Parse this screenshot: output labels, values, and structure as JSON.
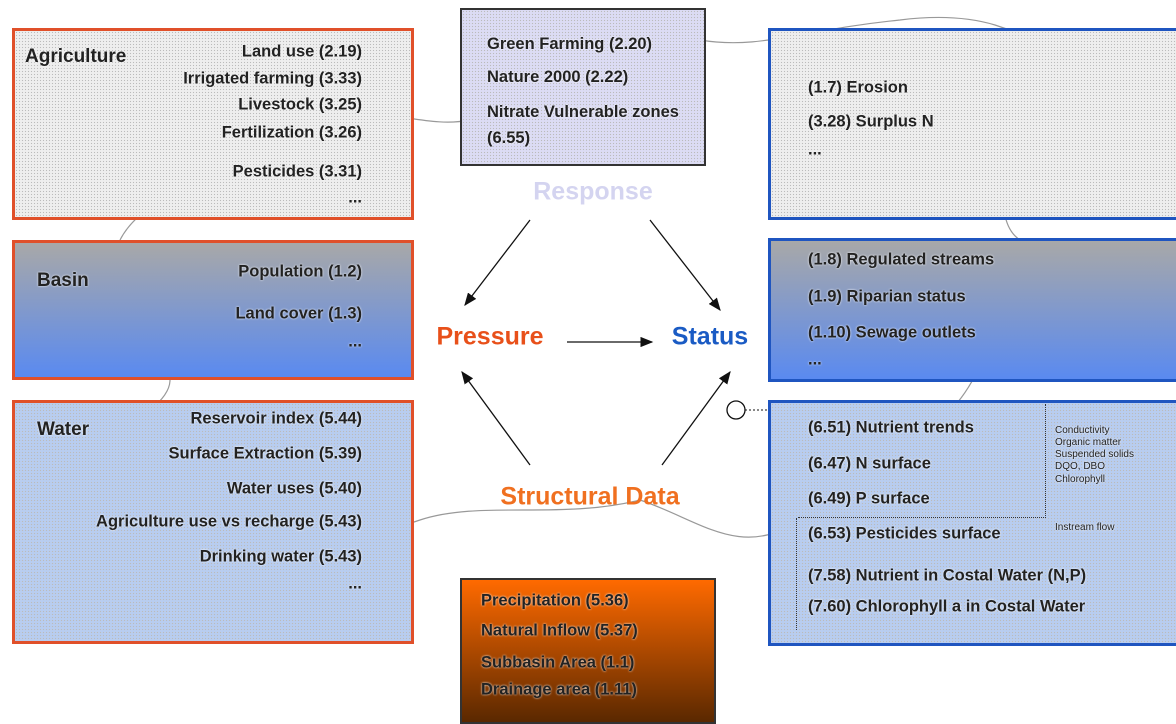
{
  "center": {
    "response": "Response",
    "pressure": "Pressure",
    "status": "Status",
    "structural": "Structural Data"
  },
  "boxes": [
    {
      "title": "Agriculture",
      "items": [
        "Land use (2.19)",
        "Irrigated farming (3.33)",
        "Livestock  (3.25)",
        "Fertilization (3.26)",
        "Pesticides (3.31)",
        "..."
      ]
    },
    {
      "items": [
        "Green Farming (2.20)",
        "Nature 2000 (2.22)",
        "Nitrate Vulnerable zones (6.55)"
      ]
    },
    {
      "items": [
        "(1.7) Erosion",
        "(3.28) Surplus N",
        "..."
      ]
    },
    {
      "title": "Basin",
      "items": [
        "Population (1.2)",
        "Land cover  (1.3)",
        "..."
      ]
    },
    {
      "items": [
        "(1.8) Regulated streams",
        "(1.9) Riparian status",
        "(1.10) Sewage outlets",
        "..."
      ]
    },
    {
      "title": "Water",
      "items": [
        "Reservoir index (5.44)",
        "Surface Extraction (5.39)",
        "Water uses (5.40)",
        "Agriculture use vs recharge (5.43)",
        "Drinking water (5.43)",
        "..."
      ]
    },
    {
      "items": [
        "(6.51) Nutrient trends",
        "(6.47) N surface",
        "(6.49) P surface",
        "(6.53) Pesticides surface",
        "(7.58) Nutrient in Costal Water (N,P)",
        "(7.60) Chlorophyll a  in Costal Water"
      ],
      "notes": [
        "Conductivity",
        "Organic matter",
        "Suspended solids",
        "DQO, DBO",
        "Chlorophyll",
        "Instream flow"
      ]
    },
    {
      "items": [
        "Precipitation  (5.36)",
        "Natural Inflow  (5.37)",
        "Subbasin Area  (1.1)",
        "Drainage area (1.11)"
      ]
    }
  ]
}
